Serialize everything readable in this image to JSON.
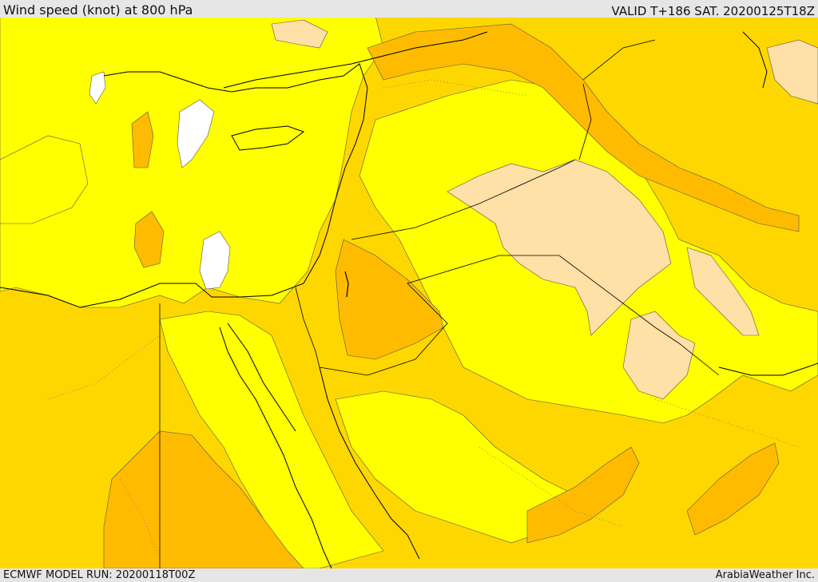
{
  "header": {
    "title": "Wind speed (knot) at 800 hPa",
    "valid": "VALID T+186 SAT. 20200125T18Z"
  },
  "footer": {
    "model_run": "ECMWF MODEL RUN: 20200118T00Z",
    "credit": "ArabiaWeather Inc."
  },
  "map": {
    "parameter": "wind speed",
    "level_hpa": 800,
    "unit": "knot",
    "colors": {
      "band_calm": "#ffffff",
      "band_light": "#ffff00",
      "band_moderate": "#ffd700",
      "band_strong": "#ffbb00",
      "band_peach": "#ffe0a6",
      "coastline": "#000000",
      "border": "#000000",
      "contour": "#555555"
    }
  }
}
